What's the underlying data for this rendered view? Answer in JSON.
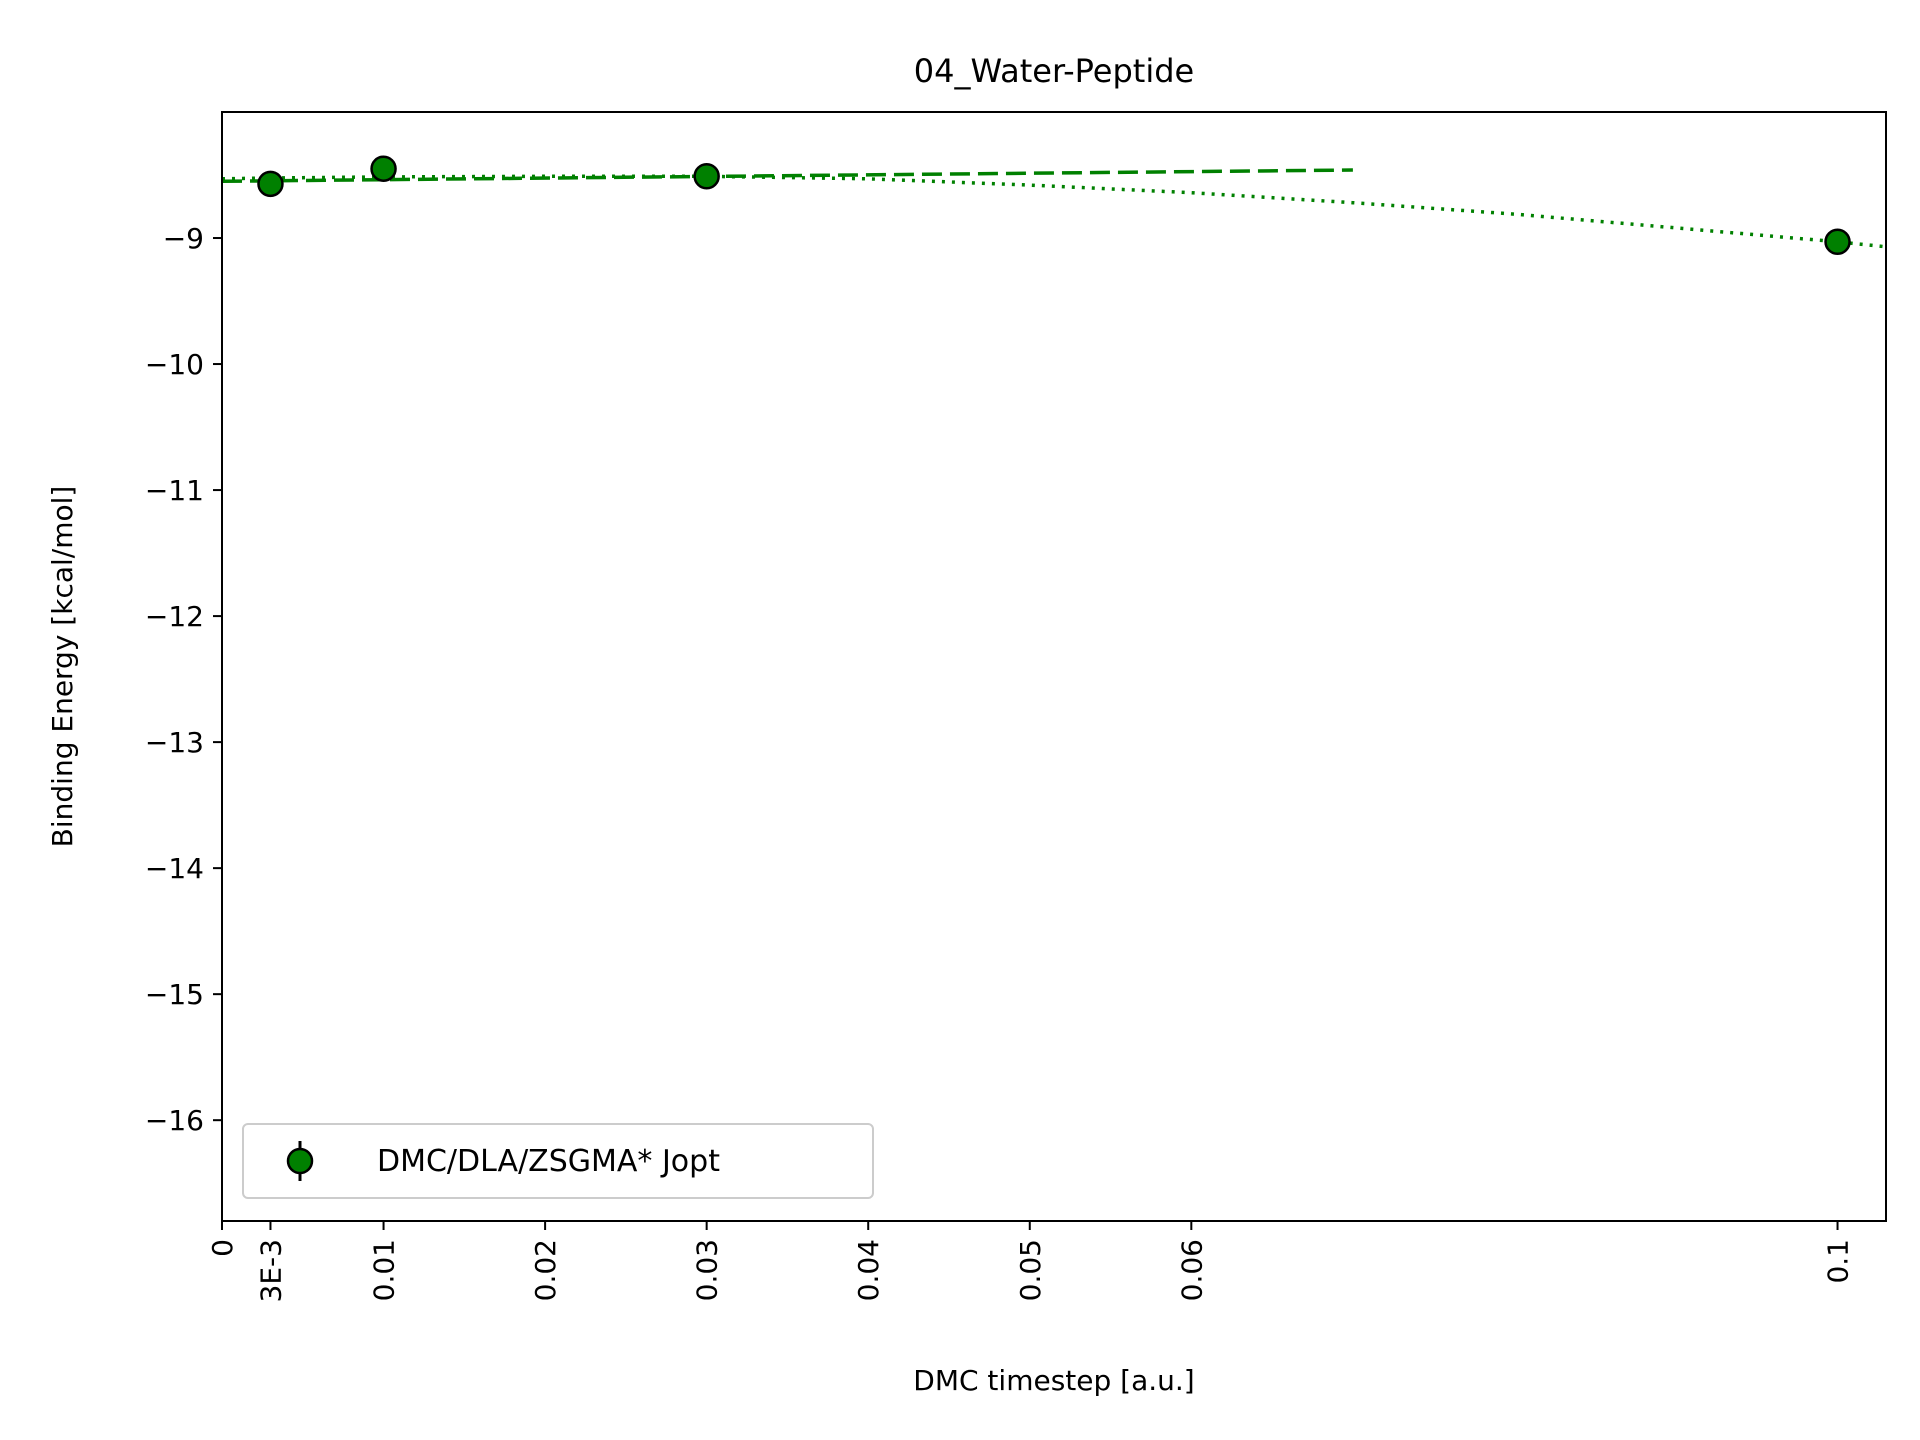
{
  "chart_data": {
    "type": "scatter",
    "title": "04_Water-Peptide",
    "xlabel": "DMC timestep [a.u.]",
    "ylabel": "Binding Energy [kcal/mol]",
    "xlim": [
      0,
      0.103
    ],
    "ylim": [
      -16.8,
      -8.0
    ],
    "xticks": [
      0,
      0.003,
      0.01,
      0.02,
      0.03,
      0.04,
      0.05,
      0.06,
      0.1
    ],
    "xticklabels": [
      "0",
      "3E-3",
      "0.01",
      "0.02",
      "0.03",
      "0.04",
      "0.05",
      "0.06",
      "0.1"
    ],
    "yticks": [
      -9,
      -10,
      -11,
      -12,
      -13,
      -14,
      -15,
      -16
    ],
    "yticklabels": [
      "−9",
      "−10",
      "−11",
      "−12",
      "−13",
      "−14",
      "−15",
      "−16"
    ],
    "grid": false,
    "legend_position": "lower-left",
    "series": [
      {
        "name": "DMC/DLA/ZSGMA* Jopt",
        "color": "#008000",
        "marker": "circle",
        "x": [
          0.003,
          0.01,
          0.03,
          0.1
        ],
        "y": [
          -8.57,
          -8.45,
          -8.51,
          -9.03
        ]
      }
    ],
    "fits": [
      {
        "style": "dashed",
        "color": "#008000",
        "x": [
          0,
          0.07
        ],
        "y": [
          -8.55,
          -8.46
        ]
      },
      {
        "style": "dotted",
        "color": "#008000",
        "x": [
          0,
          0.0015,
          0.003,
          0.01,
          0.02,
          0.03,
          0.04,
          0.05,
          0.06,
          0.07,
          0.08,
          0.09,
          0.1,
          0.103
        ],
        "y": [
          -8.53,
          -8.527,
          -8.524,
          -8.515,
          -8.51,
          -8.51,
          -8.53,
          -8.58,
          -8.64,
          -8.72,
          -8.81,
          -8.92,
          -9.03,
          -9.07
        ]
      }
    ]
  }
}
